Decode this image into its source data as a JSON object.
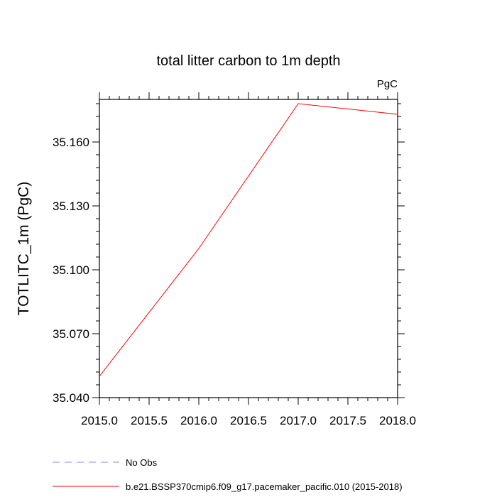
{
  "chart_data": {
    "type": "line",
    "title": "total litter carbon to 1m depth",
    "units_label": "PgC",
    "ylabel": "TOTLITC_1m  (PgC)",
    "xlabel": "",
    "xlim": [
      2015.0,
      2018.0
    ],
    "ylim": [
      35.04,
      35.18
    ],
    "x_ticks": [
      2015.0,
      2015.5,
      2016.0,
      2016.5,
      2017.0,
      2017.5,
      2018.0
    ],
    "x_tick_labels": [
      "2015.0",
      "2015.5",
      "2016.0",
      "2016.5",
      "2017.0",
      "2017.5",
      "2018.0"
    ],
    "y_ticks": [
      35.04,
      35.07,
      35.1,
      35.13,
      35.16
    ],
    "y_tick_labels": [
      "35.040",
      "35.070",
      "35.100",
      "35.130",
      "35.160"
    ],
    "grid": false,
    "series": [
      {
        "name": "b.e21.BSSP370cmip6.f09_g17.pacemaker_pacific.010 (2015-2018)",
        "color": "#ff0000",
        "dash": "solid",
        "x": [
          2015.0,
          2016.0,
          2017.0,
          2018.0
        ],
        "y": [
          35.05,
          35.11,
          35.178,
          35.173
        ]
      }
    ],
    "legend": [
      {
        "label": "No Obs",
        "color": "#8a8aff",
        "dash": "dashed"
      },
      {
        "label": "b.e21.BSSP370cmip6.f09_g17.pacemaker_pacific.010 (2015-2018)",
        "color": "#ff0000",
        "dash": "solid"
      }
    ],
    "legend_placement": "bottom"
  }
}
